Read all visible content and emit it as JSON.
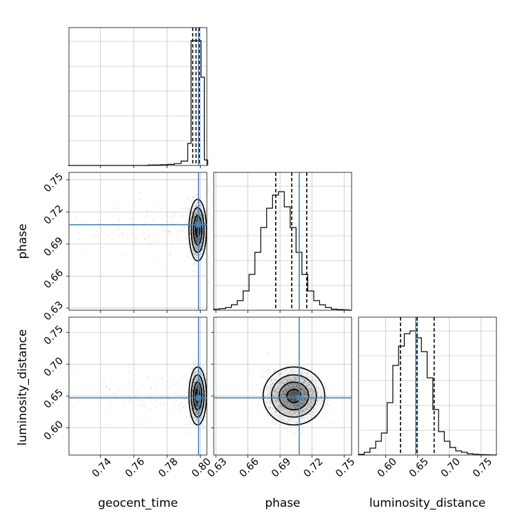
{
  "chart_data": {
    "type": "corner",
    "parameters": [
      "geocent_time",
      "phase",
      "luminosity_distance"
    ],
    "truths": {
      "geocent_time": 0.799,
      "phase": 0.708,
      "luminosity_distance": 0.647
    },
    "ranges": {
      "geocent_time": [
        0.721,
        0.804
      ],
      "phase": [
        0.628,
        0.757
      ],
      "luminosity_distance": [
        0.557,
        0.774
      ]
    },
    "ticks": {
      "geocent_time": [
        "0.74",
        "0.76",
        "0.78",
        "0.80"
      ],
      "phase": [
        "0.63",
        "0.66",
        "0.69",
        "0.72",
        "0.75"
      ],
      "luminosity_distance": [
        "0.60",
        "0.65",
        "0.70",
        "0.75"
      ]
    },
    "quantiles": {
      "geocent_time": [
        0.7955,
        0.7975,
        0.7995
      ],
      "phase": [
        0.686,
        0.701,
        0.715
      ],
      "luminosity_distance": [
        0.623,
        0.649,
        0.676
      ]
    },
    "histograms": {
      "geocent_time": {
        "bin_edges": [
          0.7205,
          0.7245,
          0.7285,
          0.7325,
          0.7365,
          0.7405,
          0.7445,
          0.7485,
          0.7525,
          0.7565,
          0.7605,
          0.7645,
          0.7685,
          0.7725,
          0.7765,
          0.7805,
          0.7845,
          0.7885,
          0.7925,
          0.7945,
          0.7965,
          0.7985,
          0.8005,
          0.8025,
          0.8045
        ],
        "counts": [
          0,
          0,
          0,
          0,
          0,
          0,
          0,
          0,
          0,
          0,
          0,
          0,
          0.003,
          0.004,
          0.006,
          0.008,
          0.014,
          0.032,
          0.16,
          0.905,
          0.905,
          0.905,
          0.64,
          0.04
        ]
      },
      "phase": {
        "bin_edges": [
          0.628,
          0.6335,
          0.639,
          0.6445,
          0.65,
          0.6555,
          0.661,
          0.6665,
          0.672,
          0.6775,
          0.683,
          0.6885,
          0.694,
          0.6995,
          0.705,
          0.7105,
          0.716,
          0.7215,
          0.727,
          0.7325,
          0.738,
          0.7435,
          0.749,
          0.7545,
          0.757
        ],
        "counts": [
          0.008,
          0.012,
          0.02,
          0.04,
          0.07,
          0.14,
          0.26,
          0.42,
          0.6,
          0.74,
          0.835,
          0.86,
          0.75,
          0.6,
          0.42,
          0.26,
          0.14,
          0.07,
          0.04,
          0.02,
          0.008,
          0.005,
          0.003,
          0
        ]
      },
      "luminosity_distance": {
        "bin_edges": [
          0.557,
          0.566,
          0.575,
          0.584,
          0.593,
          0.602,
          0.611,
          0.62,
          0.629,
          0.638,
          0.647,
          0.656,
          0.665,
          0.674,
          0.683,
          0.692,
          0.701,
          0.71,
          0.719,
          0.728,
          0.737,
          0.746,
          0.755,
          0.764,
          0.774
        ],
        "counts": [
          0.005,
          0.02,
          0.05,
          0.1,
          0.16,
          0.38,
          0.65,
          0.79,
          0.88,
          0.9,
          0.85,
          0.75,
          0.56,
          0.33,
          0.17,
          0.1,
          0.055,
          0.03,
          0.02,
          0.01,
          0.006,
          0.003,
          0.002,
          0.001
        ]
      }
    },
    "scatter_samples_approx": 1500,
    "contour_levels": 4,
    "colors": {
      "truth": "#4682b4",
      "hist": "#000000",
      "grid": "#b0b0b0",
      "samples": "#000000"
    },
    "grid": true
  }
}
